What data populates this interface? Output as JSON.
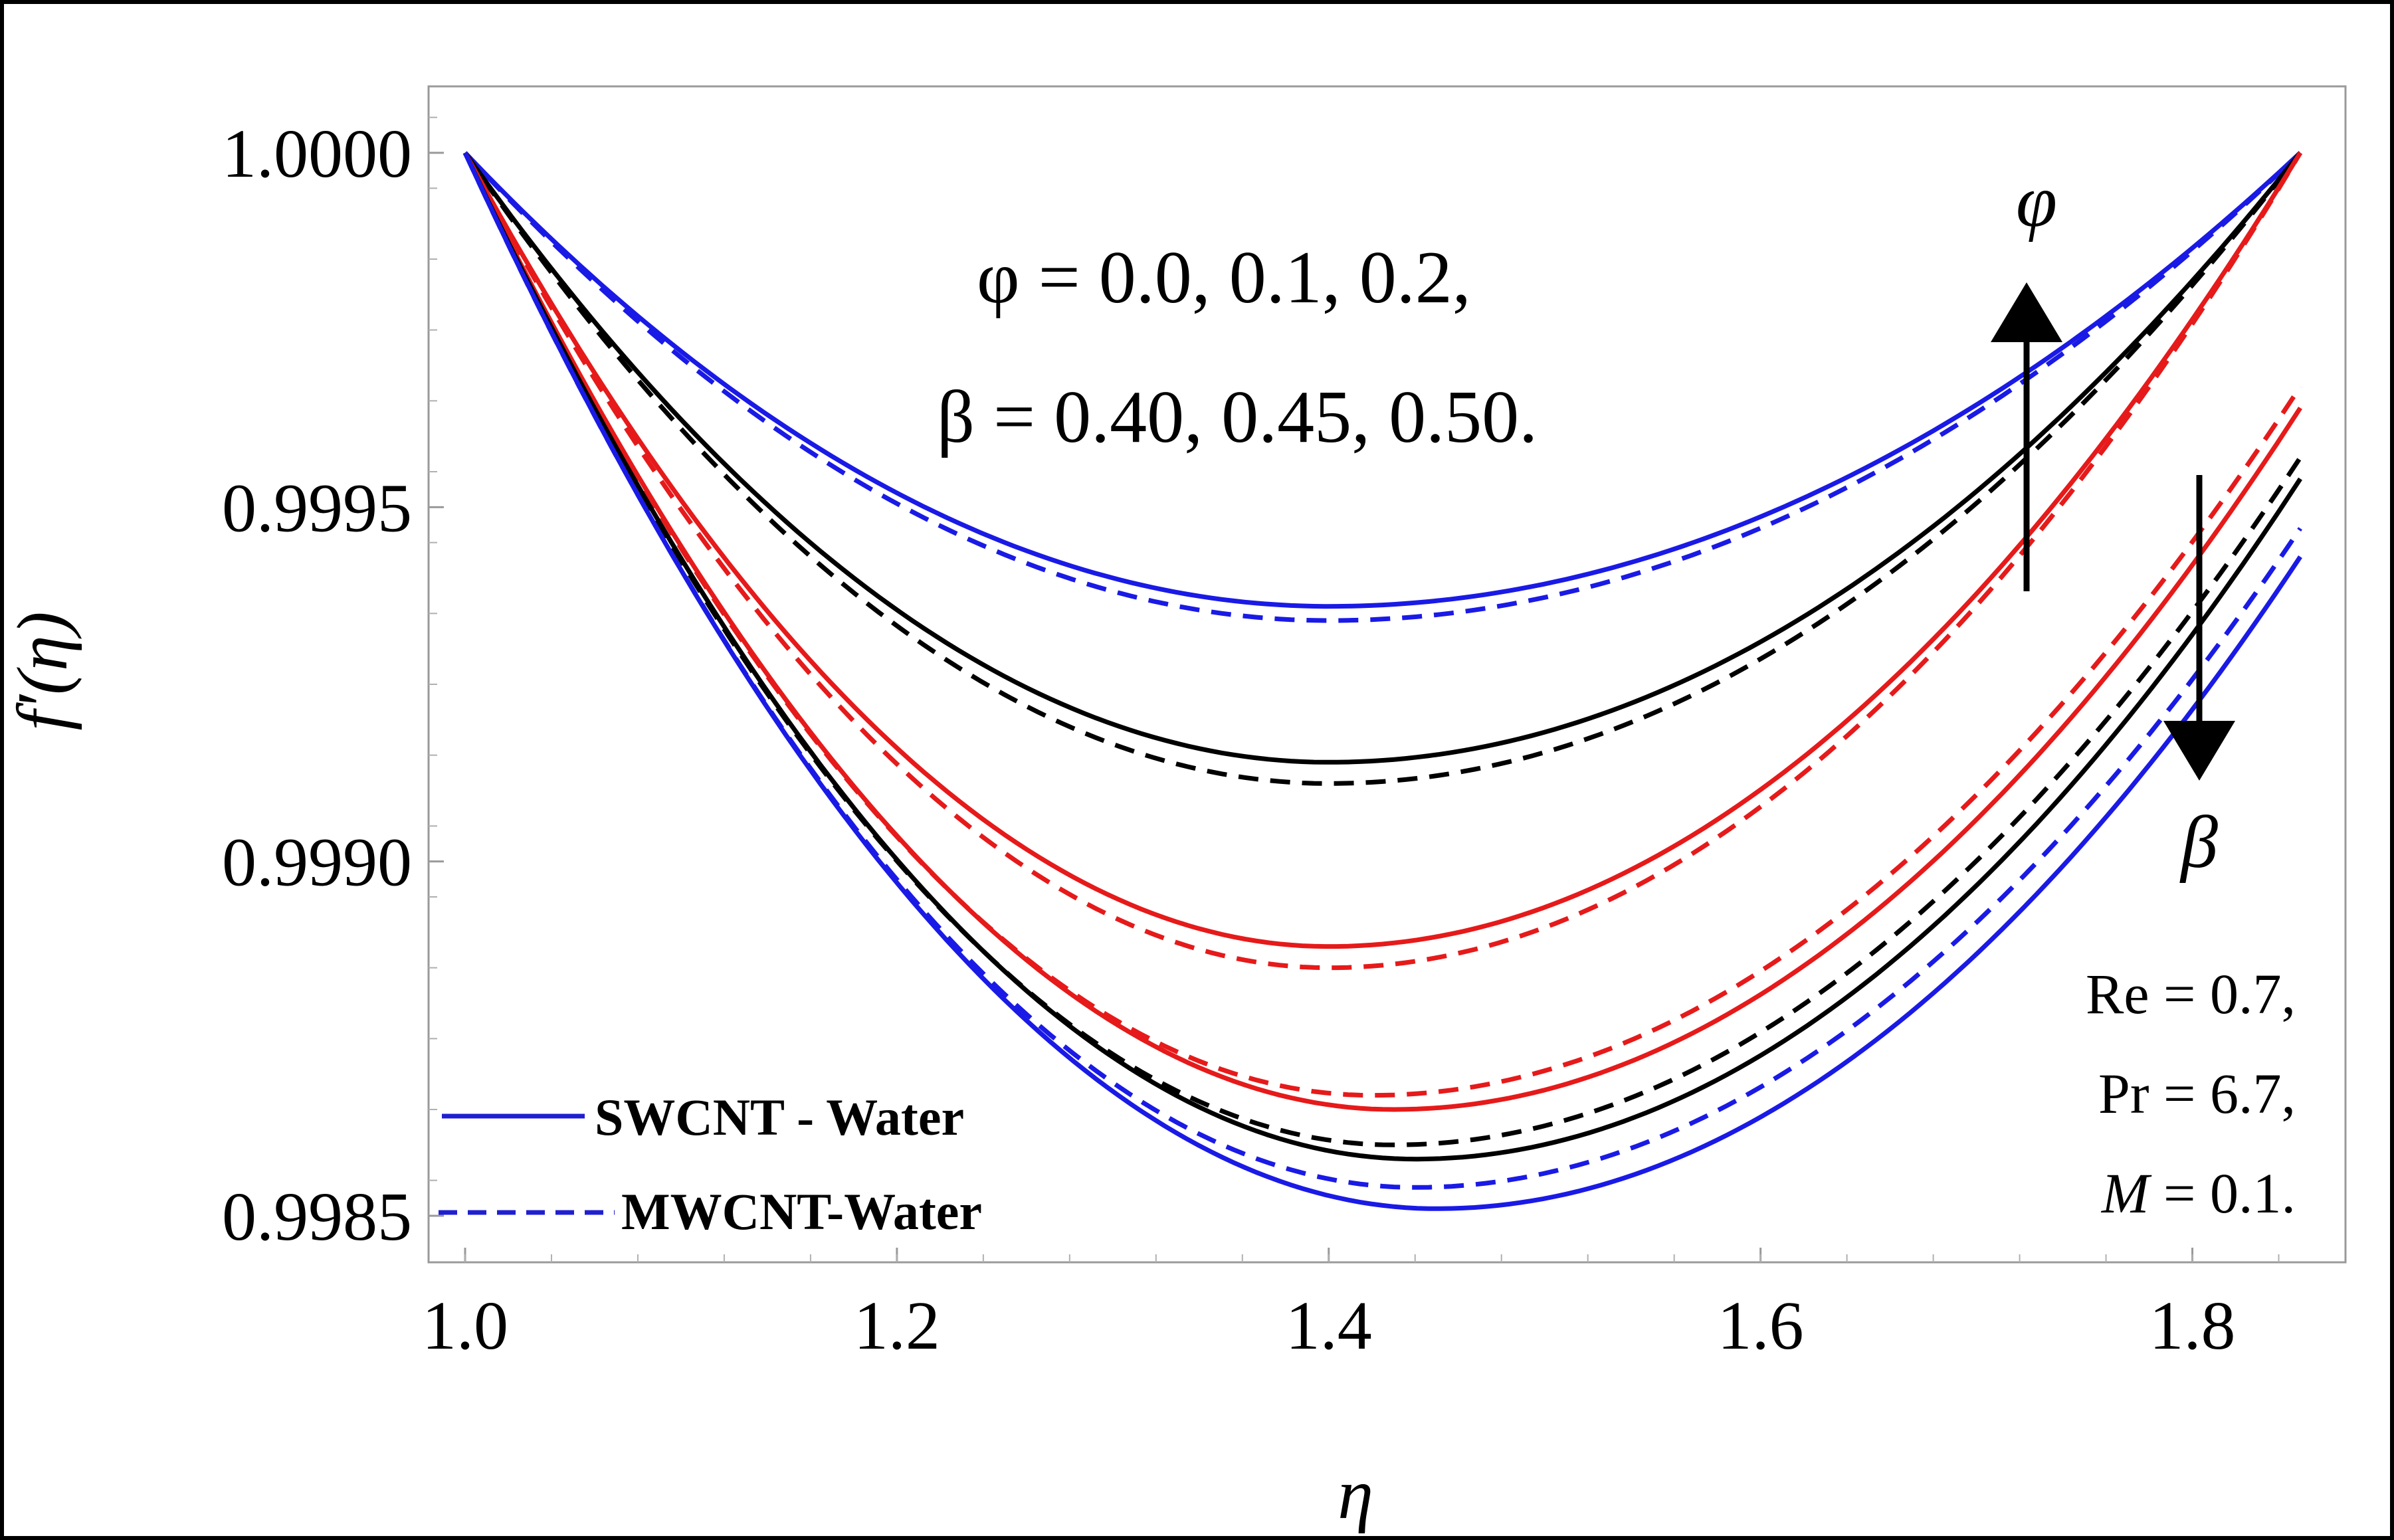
{
  "chart_data": {
    "type": "line",
    "xlabel": "η",
    "ylabel": "f′(η)",
    "xlim": [
      1.0,
      1.85
    ],
    "ylim": [
      0.99847,
      1.00008
    ],
    "x_ticks": [
      {
        "value": 1.0,
        "label": "1.0"
      },
      {
        "value": 1.2,
        "label": "1.2"
      },
      {
        "value": 1.4,
        "label": "1.4"
      },
      {
        "value": 1.6,
        "label": "1.6"
      },
      {
        "value": 1.8,
        "label": "1.8"
      }
    ],
    "y_ticks": [
      {
        "value": 1.0,
        "label": "1.0000"
      },
      {
        "value": 0.9995,
        "label": "0.9995"
      },
      {
        "value": 0.999,
        "label": "0.9990"
      },
      {
        "value": 0.9985,
        "label": "0.9985"
      }
    ],
    "legend": {
      "position": "bottom-left",
      "entries": [
        {
          "label": "SWCNT - Water",
          "style": "solid",
          "color": "#1f1fd0"
        },
        {
          "label": "MWCNT-Water",
          "style": "dashed",
          "color": "#1f1fd0"
        }
      ]
    },
    "annotations": {
      "phi_line": "φ = 0.0, 0.1, 0.2,",
      "beta_line": "β = 0.40, 0.45, 0.50.",
      "re_line": "Re = 0.7,",
      "pr_line": "Pr = 6.7,",
      "m_var": "M",
      "m_val": " = 0.1.",
      "phi_arrow_label": "φ",
      "beta_arrow_label": "β"
    },
    "series": [
      {
        "group": "phi",
        "color": "#1a1ae6",
        "style": "solid",
        "end_y": 1.0,
        "x_min": 1.4,
        "y_min": 0.99936
      },
      {
        "group": "phi",
        "color": "#1a1ae6",
        "style": "dashed",
        "end_y": 1.0,
        "x_min": 1.4,
        "y_min": 0.99934
      },
      {
        "group": "phi",
        "color": "#000000",
        "style": "solid",
        "end_y": 1.0,
        "x_min": 1.4,
        "y_min": 0.99914
      },
      {
        "group": "phi",
        "color": "#000000",
        "style": "dashed",
        "end_y": 1.0,
        "x_min": 1.4,
        "y_min": 0.99911
      },
      {
        "group": "phi",
        "color": "#e61a1a",
        "style": "solid",
        "end_y": 1.0,
        "x_min": 1.4,
        "y_min": 0.99888
      },
      {
        "group": "phi",
        "color": "#e61a1a",
        "style": "dashed",
        "end_y": 1.0,
        "x_min": 1.4,
        "y_min": 0.99885
      },
      {
        "group": "beta",
        "color": "#e61a1a",
        "style": "dashed",
        "end_y": 0.99967,
        "x_min": 1.42,
        "y_min": 0.99867
      },
      {
        "group": "beta",
        "color": "#e61a1a",
        "style": "solid",
        "end_y": 0.99964,
        "x_min": 1.43,
        "y_min": 0.99865
      },
      {
        "group": "beta",
        "color": "#000000",
        "style": "dashed",
        "end_y": 0.99957,
        "x_min": 1.43,
        "y_min": 0.9986
      },
      {
        "group": "beta",
        "color": "#000000",
        "style": "solid",
        "end_y": 0.99954,
        "x_min": 1.44,
        "y_min": 0.99858
      },
      {
        "group": "beta",
        "color": "#1a1ae6",
        "style": "dashed",
        "end_y": 0.99947,
        "x_min": 1.44,
        "y_min": 0.99854
      },
      {
        "group": "beta",
        "color": "#1a1ae6",
        "style": "solid",
        "end_y": 0.99943,
        "x_min": 1.45,
        "y_min": 0.99851
      }
    ]
  }
}
